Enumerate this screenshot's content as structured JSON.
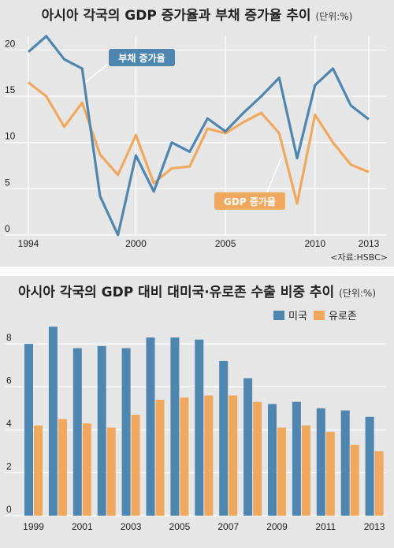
{
  "chart1": {
    "title": "아시아 각국의 GDP 증가율과 부채 증가율 추이",
    "unit": "(단위:%)",
    "source": "<자료:HSBC>",
    "colors": {
      "debt": "#4f86b0",
      "gdp": "#f0a85e",
      "background": "#e6e6e6"
    },
    "chart_data": {
      "type": "line",
      "x": [
        1994,
        1995,
        1996,
        1997,
        1998,
        1999,
        2000,
        2001,
        2002,
        2003,
        2004,
        2005,
        2006,
        2007,
        2008,
        2009,
        2010,
        2011,
        2012,
        2013
      ],
      "series": [
        {
          "name": "부채 증가율",
          "values": [
            19.8,
            21.5,
            19.0,
            18.0,
            4.2,
            0.0,
            8.6,
            4.7,
            10.0,
            9.0,
            12.6,
            11.2,
            13.2,
            15.0,
            17.0,
            8.3,
            16.2,
            18.0,
            14.0,
            12.5
          ]
        },
        {
          "name": "GDP 증가율",
          "values": [
            16.5,
            15.0,
            11.7,
            14.3,
            8.7,
            6.5,
            10.8,
            5.6,
            7.2,
            7.4,
            11.5,
            11.0,
            12.2,
            13.2,
            11.0,
            3.4,
            13.0,
            10.0,
            7.6,
            6.8
          ]
        }
      ],
      "xticks": [
        "1994",
        "2000",
        "2005",
        "2010",
        "2013"
      ],
      "yticks": [
        "0",
        "5",
        "10",
        "15",
        "20"
      ],
      "ylim": [
        0,
        22
      ],
      "grid": true
    }
  },
  "chart2": {
    "title": "아시아 각국의 GDP 대비 대미국·유로존 수출 비중 추이",
    "unit": "(단위:%)",
    "colors": {
      "us": "#4f86b0",
      "euro": "#f0a85e",
      "background": "#e6e6e6"
    },
    "chart_data": {
      "type": "bar",
      "categories": [
        "1999",
        "2000",
        "2001",
        "2002",
        "2003",
        "2004",
        "2005",
        "2006",
        "2007",
        "2008",
        "2009",
        "2010",
        "2011",
        "2012",
        "2013"
      ],
      "series": [
        {
          "name": "미국",
          "values": [
            8.0,
            8.8,
            7.8,
            7.9,
            7.8,
            8.3,
            8.3,
            8.2,
            7.2,
            6.4,
            5.2,
            5.3,
            5.0,
            4.9,
            4.6
          ]
        },
        {
          "name": "유로존",
          "values": [
            4.2,
            4.5,
            4.3,
            4.1,
            4.7,
            5.4,
            5.5,
            5.6,
            5.6,
            5.3,
            4.1,
            4.2,
            3.9,
            3.3,
            3.0
          ]
        }
      ],
      "xticks": [
        "1999",
        "2001",
        "2003",
        "2005",
        "2007",
        "2009",
        "2011",
        "2013"
      ],
      "yticks": [
        "0",
        "2",
        "4",
        "6",
        "8"
      ],
      "ylim": [
        0,
        9.4
      ],
      "legend": "top-right",
      "grid": true
    }
  }
}
